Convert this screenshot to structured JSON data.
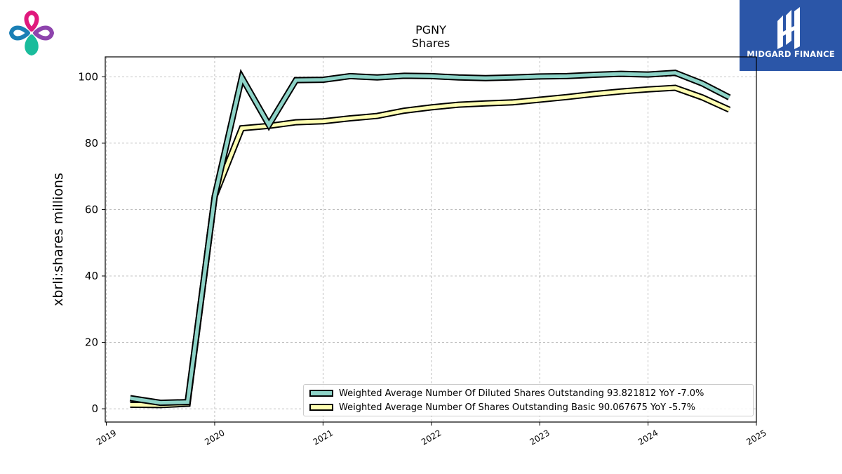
{
  "logo": {
    "brand_name": "MIDGARD FINANCE"
  },
  "colors": {
    "diluted": "#8dd3c7",
    "basic": "#ffffb3",
    "outline": "#000000",
    "grid": "#b0b0b0",
    "brand_box": "#2b56a8",
    "icon_pink": "#e0197d",
    "icon_blue": "#1a7fb5",
    "icon_purple": "#8e44ad",
    "icon_green": "#1abc9c"
  },
  "chart_data": {
    "type": "line",
    "title": "PGNY",
    "subtitle": "Shares",
    "xlabel": "",
    "ylabel": "xbrli:shares millions",
    "xlim": [
      2018.99,
      2025.0
    ],
    "ylim": [
      -4,
      106
    ],
    "xticks": [
      2019,
      2020,
      2021,
      2022,
      2023,
      2024,
      2025
    ],
    "xtick_labels": [
      "2019",
      "2020",
      "2021",
      "2022",
      "2023",
      "2024",
      "2025"
    ],
    "yticks": [
      0,
      20,
      40,
      60,
      80,
      100
    ],
    "ytick_labels": [
      "0",
      "20",
      "40",
      "60",
      "80",
      "100"
    ],
    "grid": true,
    "legend_position": "lower-right",
    "series": [
      {
        "name": "Weighted Average Number Of Diluted Shares Outstanding  93.821812 YoY -7.0%",
        "color_key": "diluted",
        "points": [
          [
            2019.22,
            3.2
          ],
          [
            2019.5,
            1.8
          ],
          [
            2019.75,
            2.0
          ],
          [
            2020.0,
            64.0
          ],
          [
            2020.25,
            99.8
          ],
          [
            2020.5,
            85.5
          ],
          [
            2020.75,
            99.0
          ],
          [
            2021.0,
            99.1
          ],
          [
            2021.25,
            100.2
          ],
          [
            2021.5,
            99.8
          ],
          [
            2021.75,
            100.3
          ],
          [
            2022.0,
            100.2
          ],
          [
            2022.25,
            99.8
          ],
          [
            2022.5,
            99.6
          ],
          [
            2022.75,
            99.8
          ],
          [
            2023.0,
            100.1
          ],
          [
            2023.25,
            100.2
          ],
          [
            2023.5,
            100.6
          ],
          [
            2023.75,
            100.9
          ],
          [
            2024.0,
            100.7
          ],
          [
            2024.25,
            101.2
          ],
          [
            2024.5,
            98.0
          ],
          [
            2024.75,
            93.8
          ]
        ]
      },
      {
        "name": "Weighted Average Number Of Shares Outstanding Basic  90.067675 YoY -5.7%",
        "color_key": "basic",
        "points": [
          [
            2019.22,
            1.2
          ],
          [
            2019.5,
            1.1
          ],
          [
            2019.75,
            1.5
          ],
          [
            2020.0,
            64.0
          ],
          [
            2020.25,
            84.5
          ],
          [
            2020.5,
            85.2
          ],
          [
            2020.75,
            86.3
          ],
          [
            2021.0,
            86.6
          ],
          [
            2021.25,
            87.5
          ],
          [
            2021.5,
            88.2
          ],
          [
            2021.75,
            89.8
          ],
          [
            2022.0,
            90.8
          ],
          [
            2022.25,
            91.6
          ],
          [
            2022.5,
            92.0
          ],
          [
            2022.75,
            92.3
          ],
          [
            2023.0,
            93.1
          ],
          [
            2023.25,
            93.9
          ],
          [
            2023.5,
            94.8
          ],
          [
            2023.75,
            95.6
          ],
          [
            2024.0,
            96.2
          ],
          [
            2024.25,
            96.7
          ],
          [
            2024.5,
            93.8
          ],
          [
            2024.75,
            90.1
          ]
        ]
      }
    ]
  }
}
